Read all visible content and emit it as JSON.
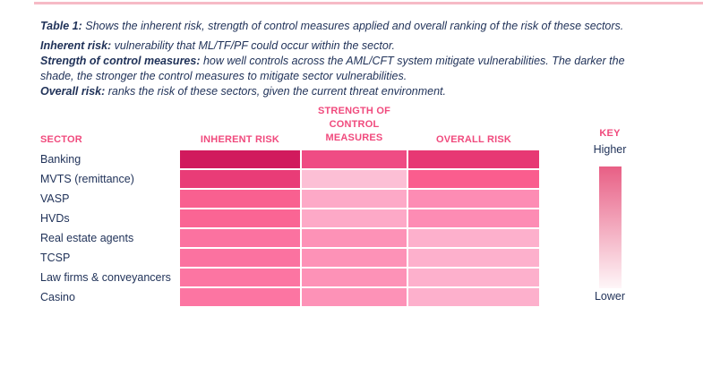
{
  "page": {
    "accent_pink": "#F04A7D",
    "text_navy": "#1F3158",
    "top_rule_color": "#F6BAC6",
    "background": "#FFFFFF"
  },
  "caption": {
    "lead": "Table 1:",
    "text": " Shows the inherent risk, strength of control measures applied and overall ranking of the risk of these sectors."
  },
  "definitions": [
    {
      "term": "Inherent risk:",
      "text": " vulnerability that ML/TF/PF could occur within the sector."
    },
    {
      "term": "Strength of control measures:",
      "text": " how well controls across the AML/CFT system mitigate vulnerabilities. The darker the shade, the stronger the control measures to mitigate sector vulnerabilities."
    },
    {
      "term": "Overall risk:",
      "text": " ranks the risk of these sectors, given the current threat environment."
    }
  ],
  "table": {
    "headers": {
      "sector": "SECTOR",
      "inherent": "INHERENT RISK",
      "strength": "STRENGTH OF CONTROL MEASURES",
      "overall": "OVERALL RISK"
    },
    "rows": [
      {
        "sector": "Banking",
        "inherent": "#D11A5D",
        "strength": "#EF4C84",
        "overall": "#E73874"
      },
      {
        "sector": "MVTS (remittance)",
        "inherent": "#E93C77",
        "strength": "#FCBFD5",
        "overall": "#FA5D8E"
      },
      {
        "sector": "VASP",
        "inherent": "#F96090",
        "strength": "#FDA9C7",
        "overall": "#FD8CB4"
      },
      {
        "sector": "HVDs",
        "inherent": "#FA6594",
        "strength": "#FDA9C7",
        "overall": "#FD8CB4"
      },
      {
        "sector": "Real estate agents",
        "inherent": "#FB72A0",
        "strength": "#FD92B7",
        "overall": "#FDB0CC"
      },
      {
        "sector": "TCSP",
        "inherent": "#FB72A0",
        "strength": "#FD92B7",
        "overall": "#FDB0CC"
      },
      {
        "sector": "Law firms & conveyancers",
        "inherent": "#FC75A2",
        "strength": "#FD92B7",
        "overall": "#FDB0CC"
      },
      {
        "sector": "Casino",
        "inherent": "#FC75A2",
        "strength": "#FD92B7",
        "overall": "#FDB0CC"
      }
    ]
  },
  "key": {
    "title": "KEY",
    "high_label": "Higher",
    "low_label": "Lower",
    "gradient_top": "#E85F85",
    "gradient_bottom": "#FEF6F8"
  }
}
